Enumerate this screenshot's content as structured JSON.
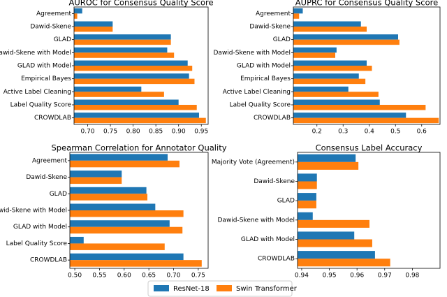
{
  "chart_data": [
    {
      "type": "hbar",
      "title": "AUROC for Consensus Quality Score",
      "categories": [
        "Agreement",
        "Dawid-Skene",
        "GLAD",
        "Dawid-Skene with Model",
        "GLAD with Model",
        "Empirical Bayes",
        "Active Label Cleaning",
        "Label Quality Score",
        "CROWDLAB"
      ],
      "series": [
        {
          "name": "ResNet-18",
          "color": "#1f77b4",
          "values": [
            0.688,
            0.755,
            0.883,
            0.875,
            0.92,
            0.923,
            0.818,
            0.9,
            0.945
          ]
        },
        {
          "name": "Swin Transformer",
          "color": "#ff7f0e",
          "values": [
            0.677,
            0.755,
            0.883,
            0.89,
            0.93,
            0.935,
            0.868,
            0.94,
            0.96
          ]
        }
      ],
      "xlim": [
        0.67,
        0.965
      ],
      "xticks": [
        {
          "value": 0.7,
          "label": "0.70"
        },
        0.75,
        {
          "value": 0.8,
          "label": "0.80"
        },
        0.85,
        {
          "value": 0.9,
          "label": "0.90"
        },
        0.95
      ]
    },
    {
      "type": "hbar",
      "title": "AUPRC for Consensus Quality Score",
      "categories": [
        "Agreement",
        "Dawid-Skene",
        "GLAD",
        "Dawid-Skene with Model",
        "GLAD with Model",
        "Empirical Bayes",
        "Active Label Cleaning",
        "Label Quality Score",
        "CROWDLAB"
      ],
      "series": [
        {
          "name": "ResNet-18",
          "color": "#1f77b4",
          "values": [
            0.146,
            0.368,
            0.51,
            0.275,
            0.39,
            0.36,
            0.32,
            0.44,
            0.54
          ]
        },
        {
          "name": "Swin Transformer",
          "color": "#ff7f0e",
          "values": [
            0.132,
            0.39,
            0.515,
            0.27,
            0.41,
            0.385,
            0.435,
            0.615,
            0.665
          ]
        }
      ],
      "xlim": [
        0.11,
        0.67
      ],
      "xticks": [
        0.2,
        0.3,
        0.4,
        0.5,
        0.6
      ]
    },
    {
      "type": "hbar",
      "title": "Spearman Correlation for Annotator Quality",
      "categories": [
        "Agreement",
        "Dawid-Skene",
        "GLAD",
        "Dawid-Skene with Model",
        "GLAD with Model",
        "Label Quality Score",
        "CROWDLAB"
      ],
      "series": [
        {
          "name": "ResNet-18",
          "color": "#1f77b4",
          "values": [
            0.688,
            0.595,
            0.645,
            0.663,
            0.692,
            0.518,
            0.72
          ]
        },
        {
          "name": "Swin Transformer",
          "color": "#ff7f0e",
          "values": [
            0.712,
            0.595,
            0.647,
            0.72,
            0.718,
            0.682,
            0.757
          ]
        }
      ],
      "xlim": [
        0.49,
        0.77
      ],
      "xticks": [
        {
          "value": 0.5,
          "label": "0.50"
        },
        0.55,
        {
          "value": 0.6,
          "label": "0.60"
        },
        0.65,
        {
          "value": 0.7,
          "label": "0.70"
        },
        0.75
      ]
    },
    {
      "type": "hbar",
      "title": "Consensus Label Accuracy",
      "categories": [
        "Majority Vote (Agreement)",
        "Dawid-Skene",
        "GLAD",
        "Dawid-Skene with Model",
        "GLAD with Model",
        "CROWDLAB"
      ],
      "series": [
        {
          "name": "ResNet-18",
          "color": "#1f77b4",
          "values": [
            0.9595,
            0.9455,
            0.9453,
            0.944,
            0.959,
            0.9665
          ]
        },
        {
          "name": "Swin Transformer",
          "color": "#ff7f0e",
          "values": [
            0.9605,
            0.9455,
            0.9453,
            0.9645,
            0.9655,
            0.972
          ]
        }
      ],
      "xlim": [
        0.9385,
        0.99
      ],
      "xticks": [
        0.94,
        0.95,
        0.96,
        0.97,
        0.98
      ]
    }
  ]
}
